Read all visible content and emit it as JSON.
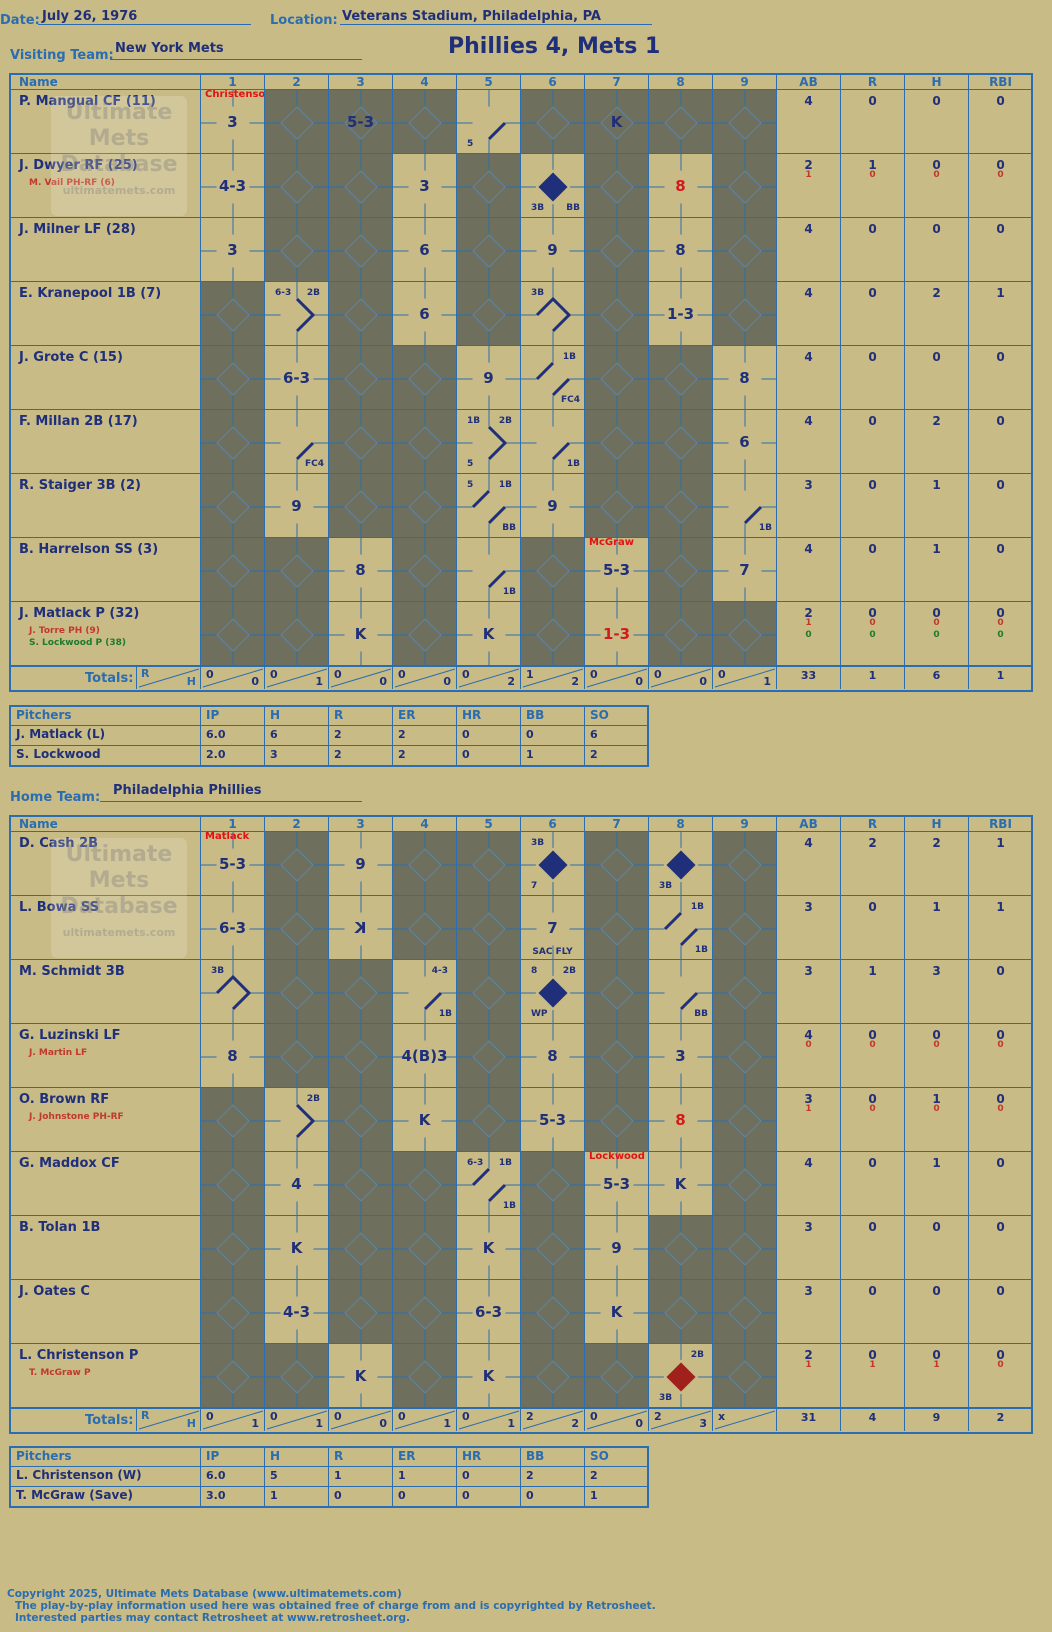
{
  "header": {
    "date_label": "Date:",
    "date": "July 26, 1976",
    "location_label": "Location:",
    "location": "Veterans Stadium, Philadelphia, PA",
    "visiting_label": "Visiting Team:",
    "visiting_team": "New York Mets",
    "score_title": "Phillies 4, Mets 1",
    "home_label": "Home Team:",
    "home_team": "Philadelphia Phillies"
  },
  "watermark": {
    "line1": "Ultimate",
    "line2": "Mets",
    "line3": "Database",
    "line4": "ultimatemets.com"
  },
  "columns": {
    "name": "Name",
    "innings": [
      "1",
      "2",
      "3",
      "4",
      "5",
      "6",
      "7",
      "8",
      "9"
    ],
    "stats": [
      "AB",
      "R",
      "H",
      "RBI"
    ]
  },
  "totals_label": "Totals:",
  "rh_labels": {
    "r": "R",
    "h": "H"
  },
  "visitors": {
    "rows": [
      {
        "name": "P. Mangual CF (11)",
        "subs": [],
        "stats": [
          [
            "4"
          ],
          [
            "0"
          ],
          [
            "0"
          ],
          [
            "0"
          ]
        ],
        "cells": {
          "1": {
            "res": "3",
            "note": "Christenson"
          },
          "3": {
            "res": "5-3"
          },
          "5": {
            "out1": true,
            "bl": "5"
          },
          "7": {
            "res": "K"
          }
        }
      },
      {
        "name": "J. Dwyer RF (25)",
        "subs": [
          {
            "t": "M. Vail PH-RF (6)",
            "c": "#c0392b"
          }
        ],
        "stats": [
          [
            "2",
            "1"
          ],
          [
            "1",
            "0"
          ],
          [
            "0",
            "0"
          ],
          [
            "0",
            "0"
          ]
        ],
        "cells": {
          "1": {
            "res": "4-3"
          },
          "4": {
            "res": "3"
          },
          "6": {
            "run": "blue",
            "bl": "3B",
            "br": "BB"
          },
          "8": {
            "res": "8",
            "red": true
          }
        }
      },
      {
        "name": "J. Milner LF (28)",
        "subs": [],
        "stats": [
          [
            "4"
          ],
          [
            "0"
          ],
          [
            "0"
          ],
          [
            "0"
          ]
        ],
        "cells": {
          "1": {
            "res": "3"
          },
          "4": {
            "res": "6"
          },
          "6": {
            "res": "9"
          },
          "8": {
            "res": "8"
          }
        }
      },
      {
        "name": "E. Kranepool 1B (7)",
        "subs": [],
        "stats": [
          [
            "4"
          ],
          [
            "0"
          ],
          [
            "2"
          ],
          [
            "1"
          ]
        ],
        "cells": {
          "2": {
            "path": "2b",
            "tl": "6-3",
            "tr": "2B"
          },
          "4": {
            "res": "6"
          },
          "6": {
            "path": "3b",
            "tl": "3B"
          },
          "8": {
            "res": "1-3"
          }
        }
      },
      {
        "name": "J. Grote C (15)",
        "subs": [],
        "stats": [
          [
            "4"
          ],
          [
            "0"
          ],
          [
            "0"
          ],
          [
            "0"
          ]
        ],
        "cells": {
          "2": {
            "res": "6-3"
          },
          "5": {
            "res": "9"
          },
          "6": {
            "path": "1b2",
            "tr": "1B",
            "br": "FC4"
          },
          "9": {
            "res": "8"
          }
        }
      },
      {
        "name": "F. Millan 2B (17)",
        "subs": [],
        "stats": [
          [
            "4"
          ],
          [
            "0"
          ],
          [
            "2"
          ],
          [
            "0"
          ]
        ],
        "cells": {
          "2": {
            "out1": true,
            "br": "FC4"
          },
          "5": {
            "path": "2b",
            "tl": "1B",
            "tr": "2B",
            "bl": "5"
          },
          "6": {
            "out1": true,
            "br": "1B"
          },
          "9": {
            "res": "6"
          }
        }
      },
      {
        "name": "R. Staiger 3B (2)",
        "subs": [],
        "stats": [
          [
            "3"
          ],
          [
            "0"
          ],
          [
            "1"
          ],
          [
            "0"
          ]
        ],
        "cells": {
          "2": {
            "res": "9"
          },
          "5": {
            "path": "1b2",
            "tl": "5",
            "tr": "1B",
            "br": "BB"
          },
          "6": {
            "res": "9"
          },
          "9": {
            "out1": true,
            "br": "1B"
          }
        }
      },
      {
        "name": "B. Harrelson SS (3)",
        "subs": [],
        "stats": [
          [
            "4"
          ],
          [
            "0"
          ],
          [
            "1"
          ],
          [
            "0"
          ]
        ],
        "cells": {
          "3": {
            "res": "8"
          },
          "5": {
            "out1": true,
            "br": "1B"
          },
          "7": {
            "res": "5-3",
            "note": "McGraw"
          },
          "9": {
            "res": "7"
          }
        }
      },
      {
        "name": "J. Matlack P (32)",
        "subs": [
          {
            "t": "J. Torre PH (9)",
            "c": "#c0392b"
          },
          {
            "t": "S. Lockwood P (38)",
            "c": "#1e7a2e"
          }
        ],
        "stats": [
          [
            "2",
            "1",
            "0"
          ],
          [
            "0",
            "0",
            "0"
          ],
          [
            "0",
            "0",
            "0"
          ],
          [
            "0",
            "0",
            "0"
          ]
        ],
        "cells": {
          "3": {
            "res": "K"
          },
          "5": {
            "res": "K"
          },
          "7": {
            "res": "1-3",
            "red": true
          }
        }
      }
    ],
    "innings_rh": [
      [
        "0",
        "0"
      ],
      [
        "0",
        "1"
      ],
      [
        "0",
        "0"
      ],
      [
        "0",
        "0"
      ],
      [
        "0",
        "2"
      ],
      [
        "1",
        "2"
      ],
      [
        "0",
        "0"
      ],
      [
        "0",
        "0"
      ],
      [
        "0",
        "1"
      ]
    ],
    "totals": [
      "33",
      "1",
      "6",
      "1"
    ],
    "dark_cells": [
      [
        2,
        3,
        4,
        6,
        7,
        8,
        9
      ],
      [
        2,
        3,
        5,
        7,
        9
      ],
      [
        2,
        3,
        5,
        7,
        9
      ],
      [
        1,
        3,
        5,
        7,
        9
      ],
      [
        1,
        3,
        4,
        7,
        8
      ],
      [
        1,
        3,
        4,
        7,
        8
      ],
      [
        1,
        3,
        4,
        7,
        8
      ],
      [
        1,
        2,
        4,
        6,
        8
      ],
      [
        1,
        2,
        4,
        6,
        8,
        9
      ]
    ]
  },
  "visitor_pitchers": {
    "title": "Pitchers",
    "cols": [
      "IP",
      "H",
      "R",
      "ER",
      "HR",
      "BB",
      "SO"
    ],
    "rows": [
      {
        "name": "J. Matlack (L)",
        "vals": [
          "6.0",
          "6",
          "2",
          "2",
          "0",
          "0",
          "6"
        ]
      },
      {
        "name": "S. Lockwood",
        "vals": [
          "2.0",
          "3",
          "2",
          "2",
          "0",
          "1",
          "2"
        ]
      }
    ]
  },
  "home": {
    "rows": [
      {
        "name": "D. Cash 2B",
        "subs": [],
        "stats": [
          [
            "4"
          ],
          [
            "2"
          ],
          [
            "2"
          ],
          [
            "1"
          ]
        ],
        "cells": {
          "1": {
            "res": "5-3",
            "note": "Matlack"
          },
          "3": {
            "res": "9"
          },
          "6": {
            "run": "blue",
            "tl": "3B",
            "bl": "7"
          },
          "8": {
            "run": "blue",
            "bl": "3B"
          }
        }
      },
      {
        "name": "L. Bowa SS",
        "subs": [],
        "stats": [
          [
            "3"
          ],
          [
            "0"
          ],
          [
            "1"
          ],
          [
            "1"
          ]
        ],
        "cells": {
          "1": {
            "res": "6-3"
          },
          "3": {
            "res": "K",
            "mirror": true
          },
          "6": {
            "res": "7",
            "bc": "SAC FLY"
          },
          "8": {
            "path": "1b2",
            "tr": "1B",
            "br": "1B"
          }
        }
      },
      {
        "name": "M. Schmidt 3B",
        "subs": [],
        "stats": [
          [
            "3"
          ],
          [
            "1"
          ],
          [
            "3"
          ],
          [
            "0"
          ]
        ],
        "cells": {
          "1": {
            "path": "3b",
            "tl": "3B"
          },
          "4": {
            "out1": true,
            "tr": "4-3",
            "br": "1B"
          },
          "6": {
            "run": "blue",
            "tl": "8",
            "tr": "2B",
            "bl": "WP"
          },
          "8": {
            "out1": true,
            "br": "BB"
          }
        }
      },
      {
        "name": "G. Luzinski LF",
        "subs": [
          {
            "t": "J. Martin LF",
            "c": "#c0392b"
          }
        ],
        "stats": [
          [
            "4",
            "0"
          ],
          [
            "0",
            "0"
          ],
          [
            "0",
            "0"
          ],
          [
            "0",
            "0"
          ]
        ],
        "cells": {
          "1": {
            "res": "8"
          },
          "4": {
            "res": "4(B)3"
          },
          "6": {
            "res": "8"
          },
          "8": {
            "res": "3"
          }
        }
      },
      {
        "name": "O. Brown RF",
        "subs": [
          {
            "t": "J. Johnstone PH-RF",
            "c": "#c0392b"
          }
        ],
        "stats": [
          [
            "3",
            "1"
          ],
          [
            "0",
            "0"
          ],
          [
            "1",
            "0"
          ],
          [
            "0",
            "0"
          ]
        ],
        "cells": {
          "2": {
            "path": "2b",
            "tr": "2B"
          },
          "4": {
            "res": "K"
          },
          "6": {
            "res": "5-3"
          },
          "8": {
            "res": "8",
            "red": true
          }
        }
      },
      {
        "name": "G. Maddox CF",
        "subs": [],
        "stats": [
          [
            "4"
          ],
          [
            "0"
          ],
          [
            "1"
          ],
          [
            "0"
          ]
        ],
        "cells": {
          "2": {
            "res": "4"
          },
          "5": {
            "path": "1b2",
            "tl": "6-3",
            "tr": "1B",
            "br": "1B"
          },
          "7": {
            "res": "5-3",
            "note": "Lockwood"
          },
          "8": {
            "res": "K"
          }
        }
      },
      {
        "name": "B. Tolan 1B",
        "subs": [],
        "stats": [
          [
            "3"
          ],
          [
            "0"
          ],
          [
            "0"
          ],
          [
            "0"
          ]
        ],
        "cells": {
          "2": {
            "res": "K"
          },
          "5": {
            "res": "K"
          },
          "7": {
            "res": "9"
          }
        }
      },
      {
        "name": "J. Oates C",
        "subs": [],
        "stats": [
          [
            "3"
          ],
          [
            "0"
          ],
          [
            "0"
          ],
          [
            "0"
          ]
        ],
        "cells": {
          "2": {
            "res": "4-3"
          },
          "5": {
            "res": "6-3"
          },
          "7": {
            "res": "K"
          }
        }
      },
      {
        "name": "L. Christenson P",
        "subs": [
          {
            "t": "T. McGraw P",
            "c": "#c0392b"
          }
        ],
        "stats": [
          [
            "2",
            "1"
          ],
          [
            "0",
            "1"
          ],
          [
            "0",
            "1"
          ],
          [
            "0",
            "0"
          ]
        ],
        "cells": {
          "3": {
            "res": "K"
          },
          "5": {
            "res": "K"
          },
          "8": {
            "run": "red",
            "tr": "2B",
            "bl": "3B"
          }
        }
      }
    ],
    "innings_rh": [
      [
        "0",
        "1"
      ],
      [
        "0",
        "1"
      ],
      [
        "0",
        "0"
      ],
      [
        "0",
        "1"
      ],
      [
        "0",
        "1"
      ],
      [
        "2",
        "2"
      ],
      [
        "0",
        "0"
      ],
      [
        "2",
        "3"
      ],
      [
        "x",
        ""
      ]
    ],
    "totals": [
      "31",
      "4",
      "9",
      "2"
    ],
    "dark_cells": [
      [
        2,
        4,
        5,
        7,
        9
      ],
      [
        2,
        4,
        5,
        7,
        9
      ],
      [
        2,
        3,
        5,
        7,
        9
      ],
      [
        2,
        3,
        5,
        7,
        9
      ],
      [
        1,
        3,
        5,
        7,
        9
      ],
      [
        1,
        3,
        4,
        6,
        9
      ],
      [
        1,
        3,
        4,
        6,
        8,
        9
      ],
      [
        1,
        3,
        4,
        6,
        8,
        9
      ],
      [
        1,
        2,
        4,
        6,
        7,
        9
      ]
    ]
  },
  "home_pitchers": {
    "title": "Pitchers",
    "cols": [
      "IP",
      "H",
      "R",
      "ER",
      "HR",
      "BB",
      "SO"
    ],
    "rows": [
      {
        "name": "L. Christenson (W)",
        "vals": [
          "6.0",
          "5",
          "1",
          "1",
          "0",
          "2",
          "2"
        ]
      },
      {
        "name": "T. McGraw (Save)",
        "vals": [
          "3.0",
          "1",
          "0",
          "0",
          "0",
          "0",
          "1"
        ]
      }
    ]
  },
  "footer": {
    "line1": "Copyright 2025, Ultimate Mets Database (www.ultimatemets.com)",
    "line2": "The play-by-play information used here was obtained free of charge from and is copyrighted by Retrosheet.",
    "line3": "Interested parties may contact Retrosheet at www.retrosheet.org."
  },
  "colors": {
    "grid": "#2a6db0",
    "paper": "#c9bb85",
    "dark": "#6f6f5e",
    "ink": "#1f2f7a",
    "red": "#d11b1b"
  }
}
